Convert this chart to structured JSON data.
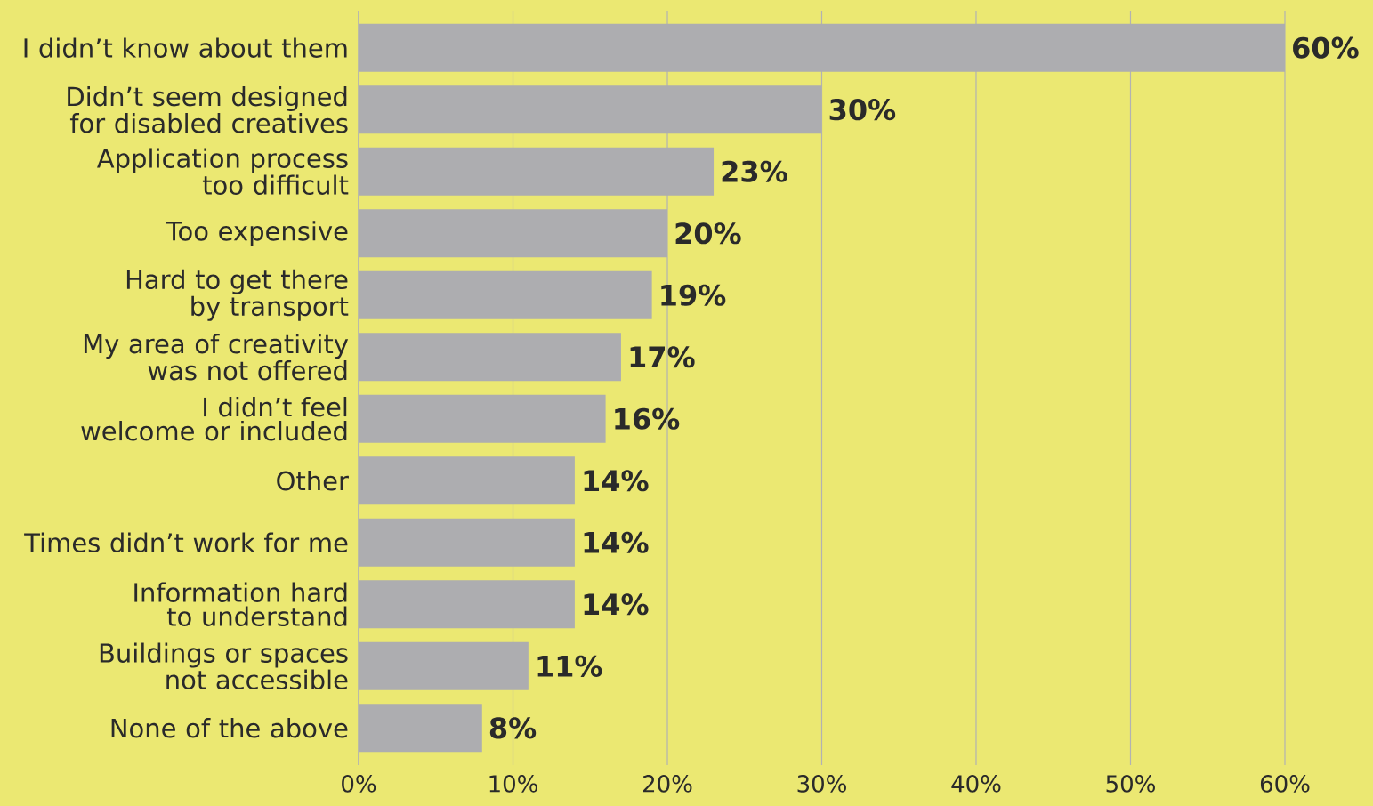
{
  "chart_data": {
    "type": "bar",
    "orientation": "horizontal",
    "categories": [
      "I didn’t know about them",
      "Didn’t seem designed for disabled creatives",
      "Application process too difficult",
      "Too expensive",
      "Hard to get there by transport",
      "My area of creativity was not offered",
      "I didn’t feel welcome or included",
      "Other",
      "Times didn’t work for me",
      "Information hard to understand",
      "Buildings or spaces not accessible",
      "None of the above"
    ],
    "values": [
      60,
      30,
      23,
      20,
      19,
      17,
      16,
      14,
      14,
      14,
      11,
      8
    ],
    "value_labels": [
      "60%",
      "30%",
      "23%",
      "20%",
      "19%",
      "17%",
      "16%",
      "14%",
      "14%",
      "14%",
      "11%",
      "8%"
    ],
    "color": "#adadb0",
    "xlim": [
      0,
      60
    ],
    "xticks": [
      {
        "value": 0,
        "label": "0%"
      },
      {
        "value": 10,
        "label": "10%"
      },
      {
        "value": 20,
        "label": "20%"
      },
      {
        "value": 30,
        "label": "30%"
      },
      {
        "value": 40,
        "label": "40%"
      },
      {
        "value": 50,
        "label": "50%"
      },
      {
        "value": 60,
        "label": "60%"
      }
    ],
    "grid": "x"
  }
}
